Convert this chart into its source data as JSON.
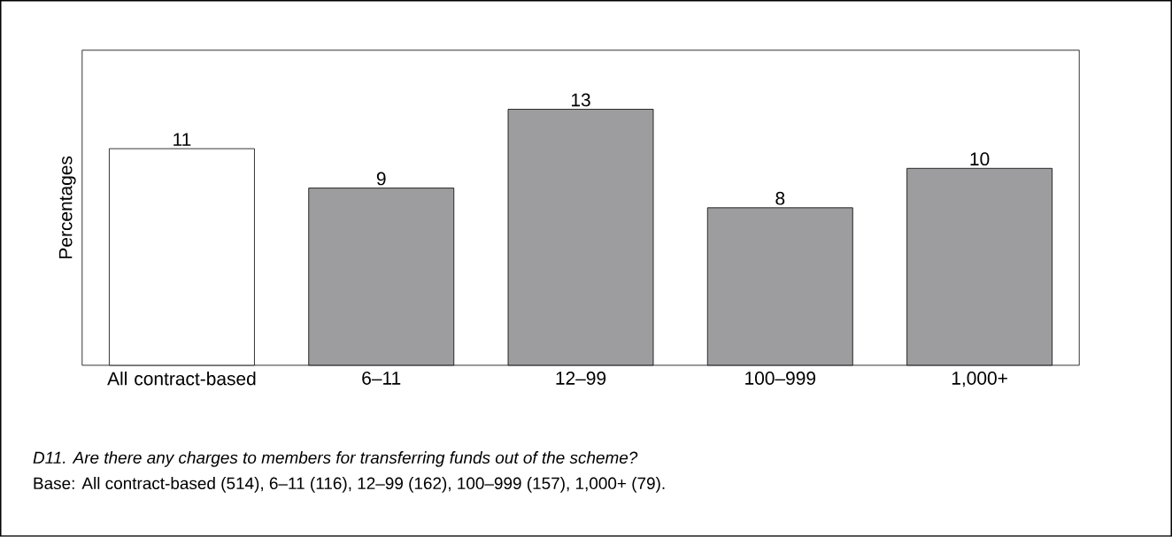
{
  "chart_data": {
    "type": "bar",
    "ylabel": "Percentages",
    "categories": [
      "All contract-based",
      "6–11",
      "12–99",
      "100–999",
      "1,000+"
    ],
    "values": [
      11,
      9,
      13,
      8,
      10
    ],
    "colors": [
      "#ffffff",
      "#9d9d9f",
      "#9d9d9f",
      "#9d9d9f",
      "#9d9d9f"
    ],
    "ylim": [
      0,
      16
    ],
    "data_labels": true,
    "tick_labels": "x",
    "annotations": [
      "D11. Are there any charges to members for transferring funds out of the scheme?",
      "Base: All contract-based (514), 6–11 (116), 12–99 (162), 100–999 (157), 1,000+ (79)."
    ]
  }
}
